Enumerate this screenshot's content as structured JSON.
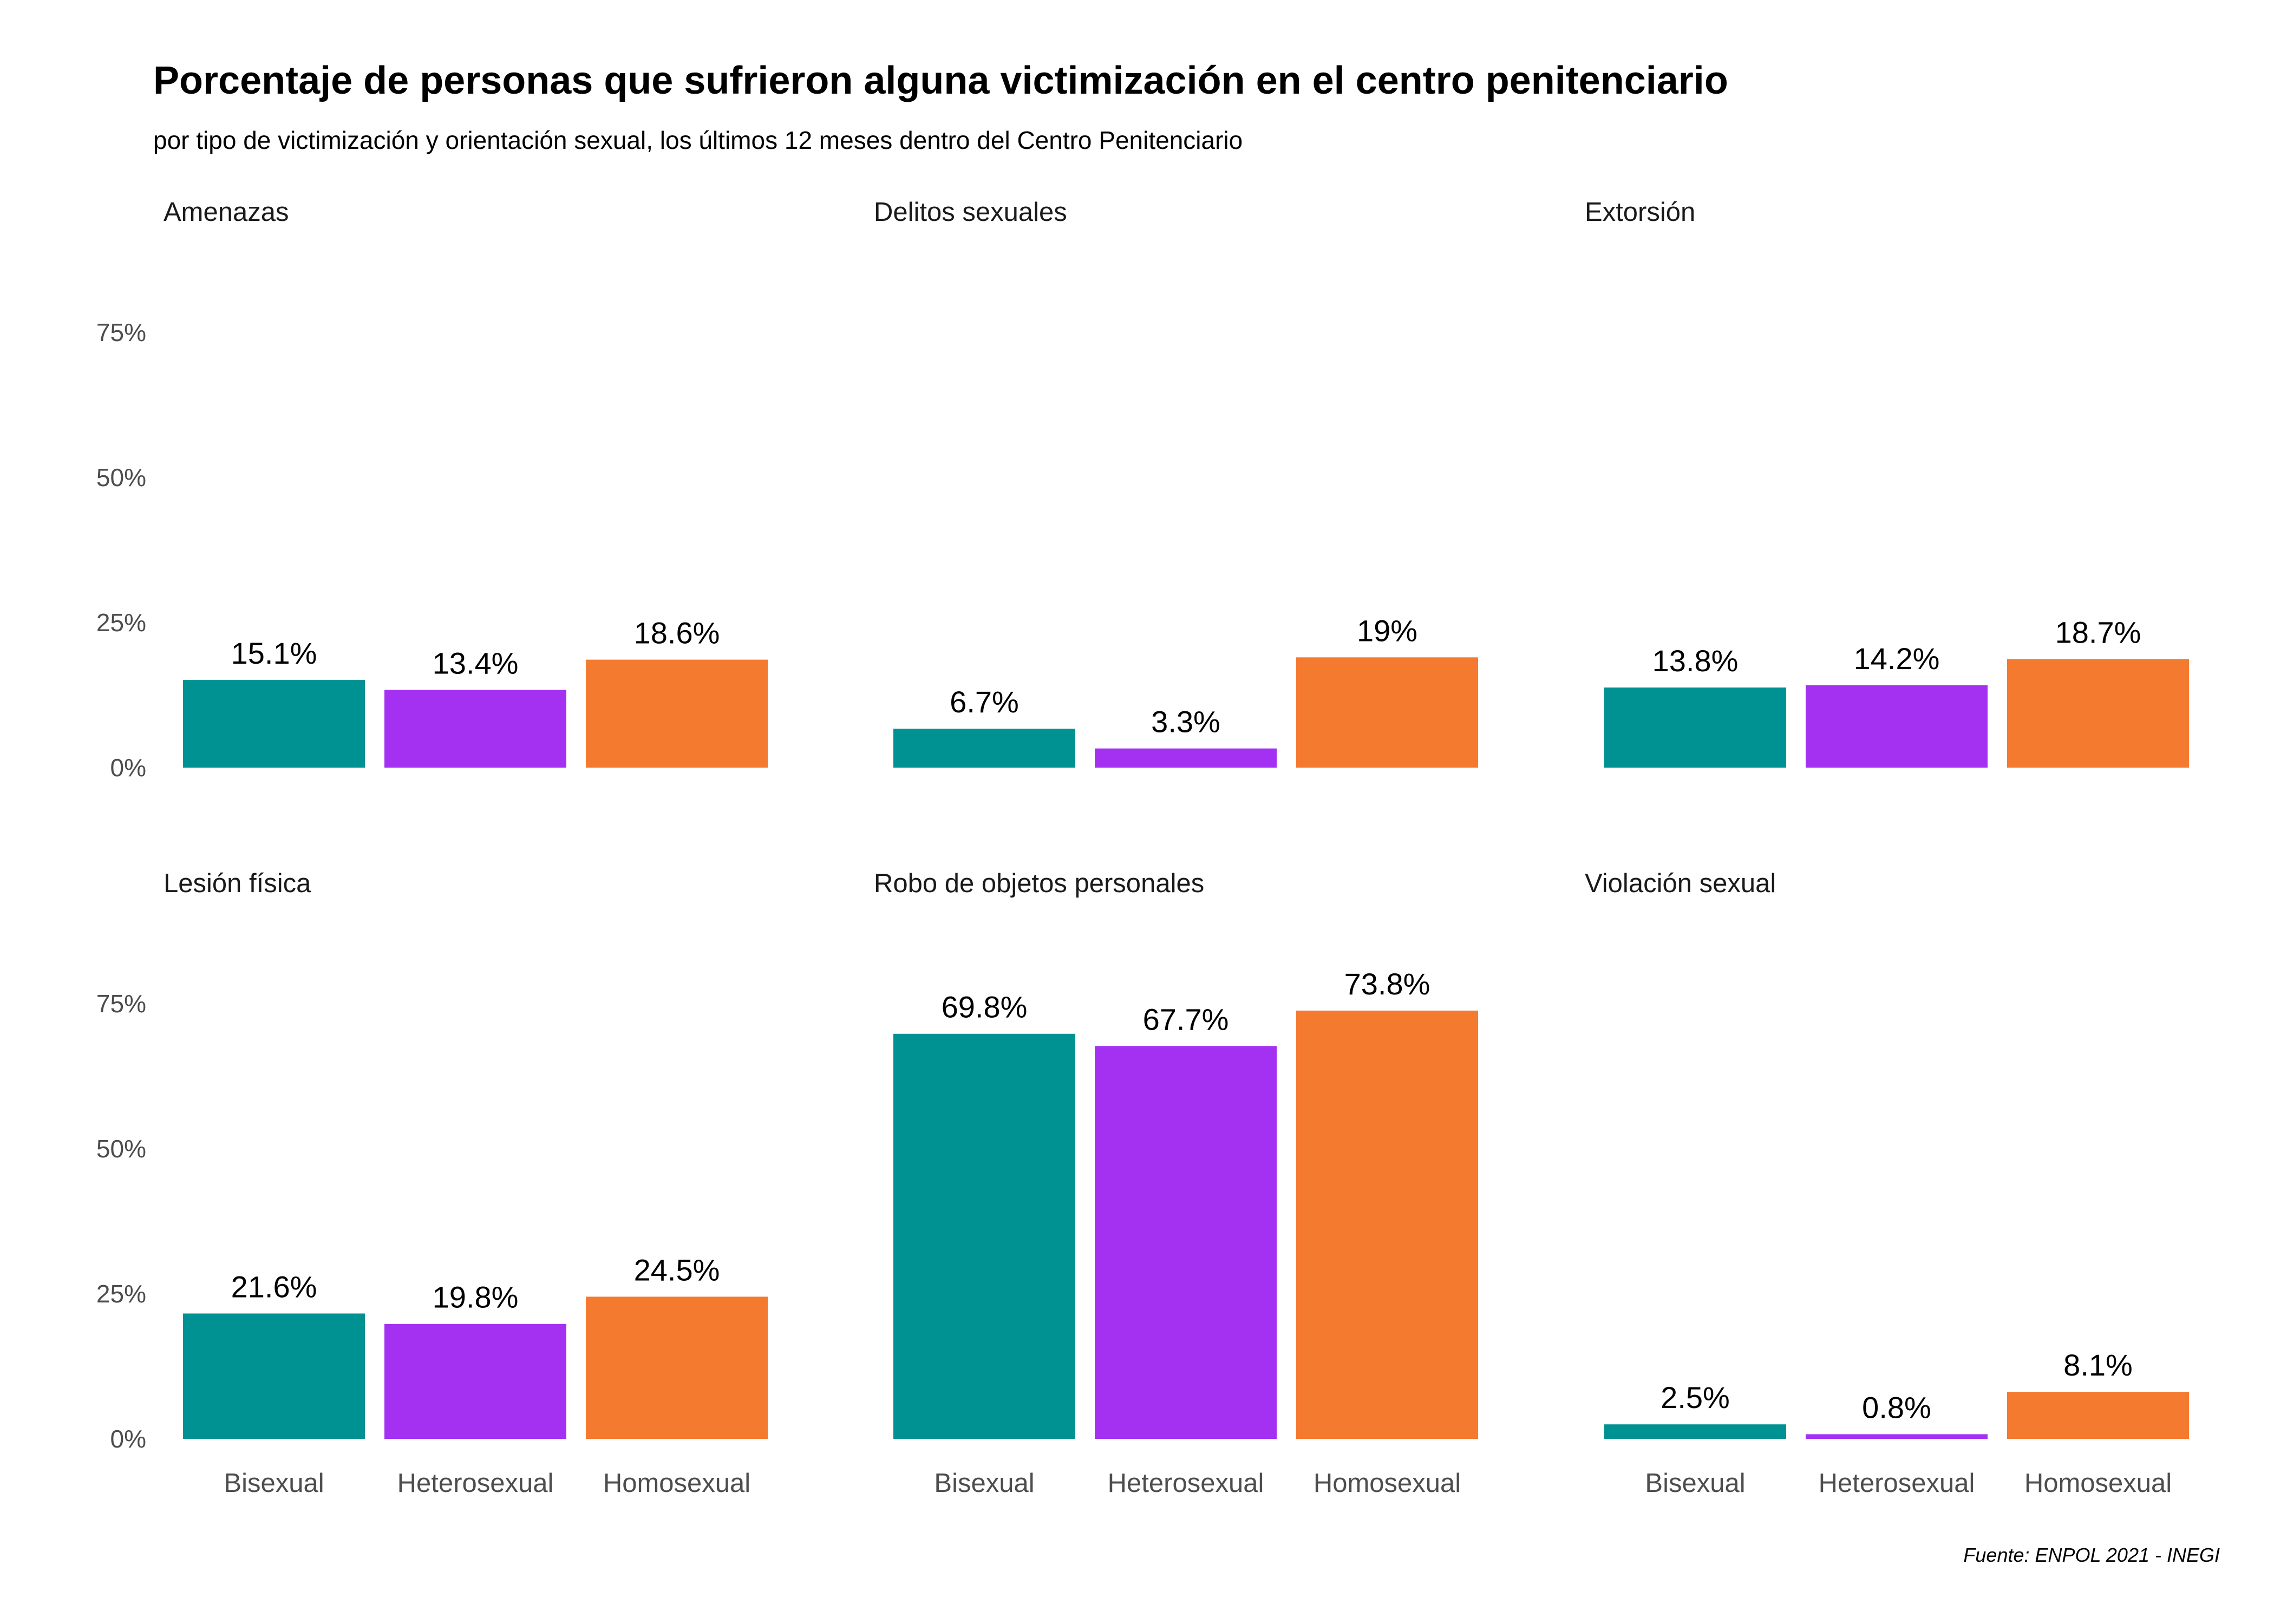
{
  "chart_data": {
    "type": "bar",
    "title": "Porcentaje de personas que sufrieron alguna victimización en el centro penitenciario",
    "subtitle": "por tipo de victimización y orientación sexual, los últimos 12 meses dentro del Centro Penitenciario",
    "caption": "Fuente: ENPOL 2021 - INEGI",
    "categories": [
      "Bisexual",
      "Heterosexual",
      "Homosexual"
    ],
    "colors": [
      "#009292",
      "#A431F2",
      "#F47A30"
    ],
    "ylim": [
      0,
      80
    ],
    "yticks": [
      0,
      25,
      50,
      75
    ],
    "ytick_labels": [
      "0%",
      "25%",
      "50%",
      "75%"
    ],
    "grid": false,
    "legend": "none",
    "panels": [
      {
        "name": "Amenazas",
        "values": [
          15.1,
          13.4,
          18.6
        ],
        "labels": [
          "15.1%",
          "13.4%",
          "18.6%"
        ]
      },
      {
        "name": "Delitos sexuales",
        "values": [
          6.7,
          3.3,
          19
        ],
        "labels": [
          "6.7%",
          "3.3%",
          "19%"
        ]
      },
      {
        "name": "Extorsión",
        "values": [
          13.8,
          14.2,
          18.7
        ],
        "labels": [
          "13.8%",
          "14.2%",
          "18.7%"
        ]
      },
      {
        "name": "Lesión física",
        "values": [
          21.6,
          19.8,
          24.5
        ],
        "labels": [
          "21.6%",
          "19.8%",
          "24.5%"
        ]
      },
      {
        "name": "Robo de objetos personales",
        "values": [
          69.8,
          67.7,
          73.8
        ],
        "labels": [
          "69.8%",
          "67.7%",
          "73.8%"
        ]
      },
      {
        "name": "Violación sexual",
        "values": [
          2.5,
          0.8,
          8.1
        ],
        "labels": [
          "2.5%",
          "0.8%",
          "8.1%"
        ]
      }
    ]
  }
}
